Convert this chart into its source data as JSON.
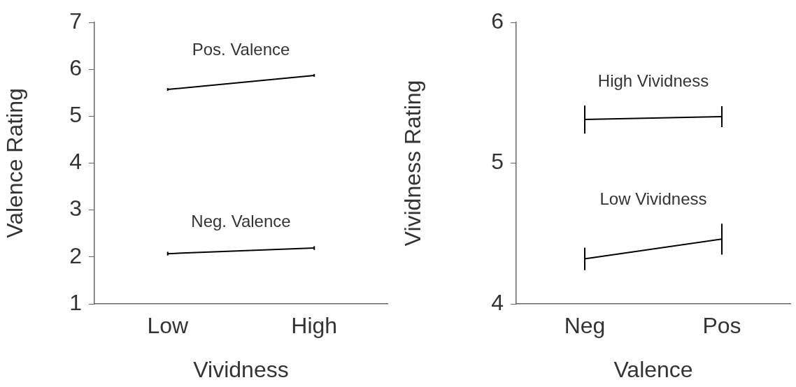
{
  "chart_data": [
    {
      "type": "line",
      "categories": [
        "Low",
        "High"
      ],
      "xlabel": "Vividness",
      "ylabel": "Valence Rating",
      "ylim": [
        1,
        7
      ],
      "yticks": [
        1,
        2,
        3,
        4,
        5,
        6,
        7
      ],
      "grid": false,
      "legend": false,
      "marker": "none",
      "series": [
        {
          "name": "Pos. Valence",
          "color": "#000000",
          "values": [
            5.57,
            5.87
          ],
          "errors": [
            0.03,
            0.03
          ]
        },
        {
          "name": "Neg. Valence",
          "color": "#000000",
          "values": [
            2.07,
            2.19
          ],
          "errors": [
            0.04,
            0.04
          ]
        }
      ]
    },
    {
      "type": "line",
      "categories": [
        "Neg",
        "Pos"
      ],
      "xlabel": "Valence",
      "ylabel": "Vividness Rating",
      "ylim": [
        4,
        6
      ],
      "yticks": [
        4,
        5,
        6
      ],
      "grid": false,
      "legend": false,
      "marker": "none",
      "series": [
        {
          "name": "High Vividness",
          "color": "#000000",
          "values": [
            5.31,
            5.33
          ],
          "errors": [
            0.1,
            0.075
          ]
        },
        {
          "name": "Low Vividness",
          "color": "#000000",
          "values": [
            4.32,
            4.46
          ],
          "errors": [
            0.08,
            0.11
          ]
        }
      ]
    }
  ]
}
